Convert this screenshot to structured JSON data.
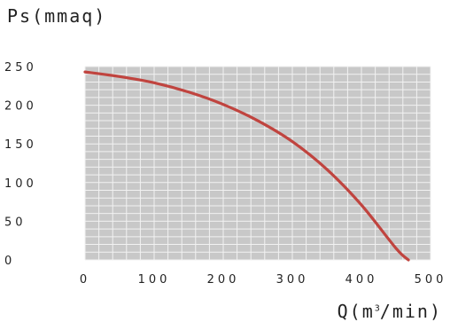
{
  "chart_data": {
    "type": "line",
    "ylabel": "Ps(mmaq)",
    "xlabel_prefix": "Q(m",
    "xlabel_sup": "3",
    "xlabel_suffix": "/min)",
    "xlim": [
      0,
      500
    ],
    "ylim": [
      0,
      250
    ],
    "xticks": [
      "0",
      "100",
      "200",
      "300",
      "400",
      "500"
    ],
    "yticks": [
      "0",
      "50",
      "100",
      "150",
      "200",
      "250"
    ],
    "x_tick_values": [
      0,
      100,
      200,
      300,
      400,
      500
    ],
    "y_tick_values": [
      0,
      50,
      100,
      150,
      200,
      250
    ],
    "minor_grid_x_step": 20,
    "minor_grid_y_step": 10,
    "grid": true,
    "grid_background": "#c8c8c8",
    "grid_line_color": "#f2f2f2",
    "series": [
      {
        "color": "#c0443f",
        "x": [
          0,
          50,
          100,
          150,
          200,
          250,
          300,
          350,
          400,
          450,
          468
        ],
        "y": [
          243,
          237,
          229,
          217,
          201,
          180,
          153,
          117,
          71,
          15,
          0
        ]
      }
    ]
  }
}
